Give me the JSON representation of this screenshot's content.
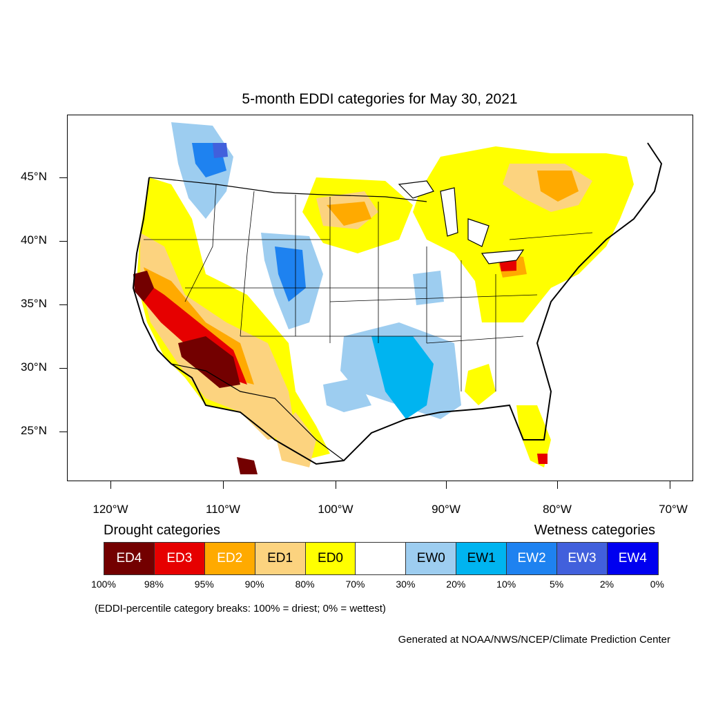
{
  "title": "5-month EDDI categories for May 30, 2021",
  "axes": {
    "lat_labels": [
      "45°N",
      "40°N",
      "35°N",
      "30°N",
      "25°N"
    ],
    "lon_labels": [
      "120°W",
      "110°W",
      "100°W",
      "90°W",
      "80°W",
      "70°W"
    ]
  },
  "legend": {
    "drought_heading": "Drought categories",
    "wetness_heading": "Wetness categories",
    "categories": [
      {
        "label": "ED4",
        "color": "#730000",
        "text_color": "#ffffff"
      },
      {
        "label": "ED3",
        "color": "#e60000",
        "text_color": "#ffffff"
      },
      {
        "label": "ED2",
        "color": "#ffaa00",
        "text_color": "#ffffff"
      },
      {
        "label": "ED1",
        "color": "#fcd37f",
        "text_color": "#000000"
      },
      {
        "label": "ED0",
        "color": "#ffff00",
        "text_color": "#000000"
      },
      {
        "label": "",
        "color": "#ffffff",
        "text_color": "#000000"
      },
      {
        "label": "EW0",
        "color": "#9dcdf0",
        "text_color": "#000000"
      },
      {
        "label": "EW1",
        "color": "#00b4f0",
        "text_color": "#000000"
      },
      {
        "label": "EW2",
        "color": "#1e82f0",
        "text_color": "#ffffff"
      },
      {
        "label": "EW3",
        "color": "#4160dc",
        "text_color": "#ffffff"
      },
      {
        "label": "EW4",
        "color": "#0000f0",
        "text_color": "#ffffff"
      }
    ],
    "breaks": [
      "100%",
      "98%",
      "95%",
      "90%",
      "80%",
      "70%",
      "30%",
      "20%",
      "10%",
      "5%",
      "2%",
      "0%"
    ]
  },
  "note": "(EDDI-percentile category breaks: 100% = driest; 0% = wettest)",
  "credit": "Generated at NOAA/NWS/NCEP/Climate Prediction Center"
}
